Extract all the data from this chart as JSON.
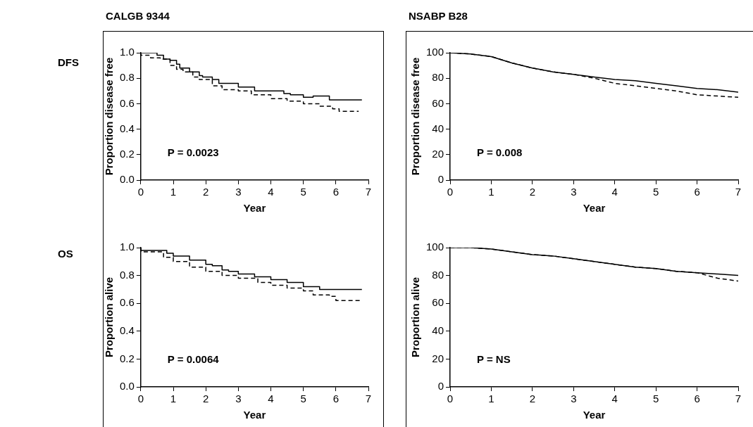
{
  "chart_data": [
    {
      "type": "step",
      "title": "CALGB 9344",
      "subtitle": "DFS",
      "xlabel": "Year",
      "ylabel": "Proportion disease free",
      "xlim": [
        0,
        7
      ],
      "xticks": [
        0,
        1,
        2,
        3,
        4,
        5,
        6,
        7
      ],
      "ylim": [
        0,
        1
      ],
      "yticks": [
        {
          "value": 0,
          "label": "0.0"
        },
        {
          "value": 0.2,
          "label": "0.2"
        },
        {
          "value": 0.4,
          "label": "0.4"
        },
        {
          "value": 0.6,
          "label": "0.6"
        },
        {
          "value": 0.8,
          "label": "0.8"
        },
        {
          "value": 1,
          "label": "1.0"
        }
      ],
      "annotations": [
        "P = 0.0023"
      ],
      "marker": "none",
      "series": [
        {
          "color": "#000000",
          "line_style": "solid",
          "x": [
            0,
            0.5,
            0.7,
            0.9,
            1.1,
            1.2,
            1.5,
            1.8,
            1.9,
            2.2,
            2.4,
            3,
            3.5,
            4,
            4.4,
            4.6,
            5,
            5.3,
            5.8,
            5.9,
            6.8
          ],
          "values": [
            1.0,
            1.0,
            0.98,
            0.95,
            0.94,
            0.91,
            0.88,
            0.85,
            0.82,
            0.81,
            0.79,
            0.76,
            0.73,
            0.7,
            0.7,
            0.68,
            0.67,
            0.65,
            0.66,
            0.63,
            0.63
          ]
        },
        {
          "color": "#000000",
          "line_style": "dashed",
          "x": [
            0,
            0.3,
            0.6,
            0.9,
            1.1,
            1.3,
            1.6,
            1.8,
            2.2,
            2.5,
            3,
            3.4,
            3.6,
            4,
            4.5,
            5,
            5.5,
            5.9,
            6.1,
            6.5,
            6.7
          ],
          "values": [
            1.0,
            0.98,
            0.96,
            0.95,
            0.9,
            0.87,
            0.85,
            0.81,
            0.79,
            0.74,
            0.71,
            0.7,
            0.67,
            0.67,
            0.64,
            0.62,
            0.6,
            0.58,
            0.56,
            0.54,
            0.54
          ]
        }
      ]
    },
    {
      "type": "line",
      "title": "NSABP B28",
      "xlabel": "Year",
      "ylabel": "Proportion disease free",
      "xlim": [
        0,
        7
      ],
      "xticks": [
        0,
        1,
        2,
        3,
        4,
        5,
        6,
        7
      ],
      "ylim": [
        0,
        100
      ],
      "yticks": [
        0,
        20,
        40,
        60,
        80,
        100
      ],
      "annotations": [
        "P = 0.008"
      ],
      "marker": "none",
      "series": [
        {
          "color": "#000000",
          "line_style": "solid",
          "x": [
            0,
            0.5,
            1,
            1.5,
            2,
            2.5,
            3,
            3.5,
            4,
            4.5,
            5,
            5.5,
            6,
            6.5,
            7
          ],
          "values": [
            100,
            99,
            97,
            92,
            88,
            85,
            83,
            81,
            79,
            78,
            76,
            74,
            72,
            71,
            69
          ]
        },
        {
          "color": "#000000",
          "line_style": "dashed",
          "x": [
            0,
            0.5,
            1,
            1.5,
            2,
            2.5,
            3,
            3.5,
            4,
            4.5,
            5,
            5.5,
            6,
            6.5,
            7
          ],
          "values": [
            100,
            99,
            97,
            92,
            88,
            85,
            83,
            80,
            76,
            74,
            72,
            70,
            67,
            66,
            65
          ]
        }
      ]
    },
    {
      "type": "step",
      "subtitle": "OS",
      "xlabel": "Year",
      "ylabel": "Proportion alive",
      "xlim": [
        0,
        7
      ],
      "xticks": [
        0,
        1,
        2,
        3,
        4,
        5,
        6,
        7
      ],
      "ylim": [
        0,
        1
      ],
      "yticks": [
        {
          "value": 0,
          "label": "0.0"
        },
        {
          "value": 0.2,
          "label": "0.2"
        },
        {
          "value": 0.4,
          "label": "0.4"
        },
        {
          "value": 0.6,
          "label": "0.6"
        },
        {
          "value": 0.8,
          "label": "0.8"
        },
        {
          "value": 1,
          "label": "1.0"
        }
      ],
      "annotations": [
        "P = 0.0064"
      ],
      "marker": "none",
      "series": [
        {
          "color": "#000000",
          "line_style": "solid",
          "x": [
            0,
            0.8,
            1,
            1.5,
            1.8,
            2,
            2.2,
            2.5,
            2.7,
            3,
            3.5,
            4,
            4.5,
            5,
            5.5,
            6,
            6.8
          ],
          "values": [
            1.0,
            0.98,
            0.96,
            0.94,
            0.91,
            0.91,
            0.88,
            0.87,
            0.84,
            0.83,
            0.81,
            0.79,
            0.77,
            0.75,
            0.72,
            0.7,
            0.7
          ]
        },
        {
          "color": "#000000",
          "line_style": "dashed",
          "x": [
            0,
            0.4,
            0.7,
            1,
            1.5,
            2,
            2.5,
            3,
            3.3,
            3.6,
            4,
            4.5,
            5,
            5.3,
            5.5,
            5.8,
            6,
            6.5,
            6.8
          ],
          "values": [
            1.0,
            0.97,
            0.97,
            0.93,
            0.9,
            0.86,
            0.83,
            0.8,
            0.78,
            0.78,
            0.75,
            0.73,
            0.71,
            0.69,
            0.66,
            0.66,
            0.65,
            0.62,
            0.62
          ]
        }
      ]
    },
    {
      "type": "line",
      "xlabel": "Year",
      "ylabel": "Proportion alive",
      "xlim": [
        0,
        7
      ],
      "xticks": [
        0,
        1,
        2,
        3,
        4,
        5,
        6,
        7
      ],
      "ylim": [
        0,
        100
      ],
      "yticks": [
        0,
        20,
        40,
        60,
        80,
        100
      ],
      "annotations": [
        "P = NS"
      ],
      "marker": "none",
      "series": [
        {
          "color": "#000000",
          "line_style": "solid",
          "x": [
            0,
            0.5,
            1,
            1.5,
            2,
            2.5,
            3,
            3.5,
            4,
            4.5,
            5,
            5.5,
            6,
            6.5,
            7
          ],
          "values": [
            100,
            100,
            99,
            97,
            95,
            94,
            92,
            90,
            88,
            86,
            85,
            83,
            82,
            81,
            80
          ]
        },
        {
          "color": "#000000",
          "line_style": "dashed",
          "x": [
            0,
            0.5,
            1,
            1.5,
            2,
            2.5,
            3,
            3.5,
            4,
            4.5,
            5,
            5.5,
            6,
            6.5,
            7
          ],
          "values": [
            100,
            100,
            99,
            97,
            95,
            94,
            92,
            90,
            88,
            86,
            85,
            83,
            82,
            78,
            76
          ]
        }
      ]
    }
  ]
}
